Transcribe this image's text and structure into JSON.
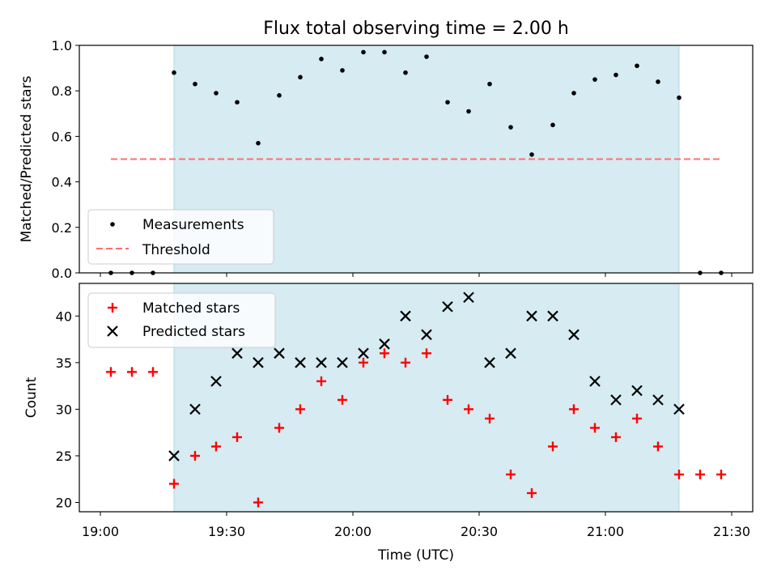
{
  "chart_data": [
    {
      "type": "scatter",
      "title": "Flux total observing time = 2.00 h",
      "xlabel": "",
      "ylabel": "Matched/Predicted stars",
      "x_units": "minutes after 19:00 UTC",
      "x": [
        2.5,
        7.5,
        12.5,
        17.5,
        22.5,
        27.5,
        32.5,
        37.5,
        42.5,
        47.5,
        52.5,
        57.5,
        62.5,
        67.5,
        72.5,
        77.5,
        82.5,
        87.5,
        92.5,
        97.5,
        102.5,
        107.5,
        112.5,
        117.5,
        122.5,
        127.5,
        132.5,
        137.5,
        142.5,
        147.5
      ],
      "series": [
        {
          "name": "Measurements",
          "marker": "dot",
          "color": "#000000",
          "values": [
            0.0,
            0.0,
            0.0,
            0.88,
            0.83,
            0.79,
            0.75,
            0.57,
            0.78,
            0.86,
            0.94,
            0.89,
            0.97,
            0.97,
            0.88,
            0.95,
            0.75,
            0.71,
            0.83,
            0.64,
            0.52,
            0.65,
            0.79,
            0.85,
            0.87,
            0.91,
            0.84,
            0.77,
            0.0,
            0.0
          ]
        },
        {
          "name": "Threshold",
          "marker": "dashed-line",
          "color": "#ff6f6f",
          "x_range": [
            2.5,
            147.5
          ],
          "value": 0.5
        }
      ],
      "shaded_region": {
        "x": [
          17.5,
          137.5
        ],
        "color": "#add8e6"
      },
      "ylim": [
        0,
        1.0
      ],
      "xlim": [
        -5,
        155
      ],
      "yticks": [
        "0.0",
        "0.2",
        "0.4",
        "0.6",
        "0.8",
        "1.0"
      ],
      "legend": "lower-left"
    },
    {
      "type": "scatter",
      "title": "",
      "xlabel": "Time (UTC)",
      "ylabel": "Count",
      "x_units": "minutes after 19:00 UTC",
      "x": [
        2.5,
        7.5,
        12.5,
        17.5,
        22.5,
        27.5,
        32.5,
        37.5,
        42.5,
        47.5,
        52.5,
        57.5,
        62.5,
        67.5,
        72.5,
        77.5,
        82.5,
        87.5,
        92.5,
        97.5,
        102.5,
        107.5,
        112.5,
        117.5,
        122.5,
        127.5,
        132.5,
        137.5,
        142.5,
        147.5
      ],
      "series": [
        {
          "name": "Matched stars",
          "marker": "+",
          "color": "#ff0000",
          "values": [
            34,
            34,
            34,
            22,
            25,
            26,
            27,
            20,
            28,
            30,
            33,
            31,
            35,
            36,
            35,
            36,
            31,
            30,
            29,
            23,
            21,
            26,
            30,
            28,
            27,
            29,
            26,
            23,
            23,
            23
          ]
        },
        {
          "name": "Predicted stars",
          "marker": "x",
          "color": "#000000",
          "values": [
            null,
            null,
            null,
            25,
            30,
            33,
            36,
            35,
            36,
            35,
            35,
            35,
            36,
            37,
            40,
            38,
            41,
            42,
            35,
            36,
            40,
            40,
            38,
            33,
            31,
            32,
            31,
            30,
            null,
            null
          ]
        }
      ],
      "shaded_region": {
        "x": [
          17.5,
          137.5
        ],
        "color": "#add8e6"
      },
      "ylim": [
        19,
        43.5
      ],
      "xlim": [
        -5,
        155
      ],
      "yticks": [
        "20",
        "25",
        "30",
        "35",
        "40"
      ],
      "xticks": [
        {
          "value": 0,
          "label": "19:00"
        },
        {
          "value": 30,
          "label": "19:30"
        },
        {
          "value": 60,
          "label": "20:00"
        },
        {
          "value": 90,
          "label": "20:30"
        },
        {
          "value": 120,
          "label": "21:00"
        },
        {
          "value": 150,
          "label": "21:30"
        }
      ],
      "legend": "upper-left"
    }
  ]
}
